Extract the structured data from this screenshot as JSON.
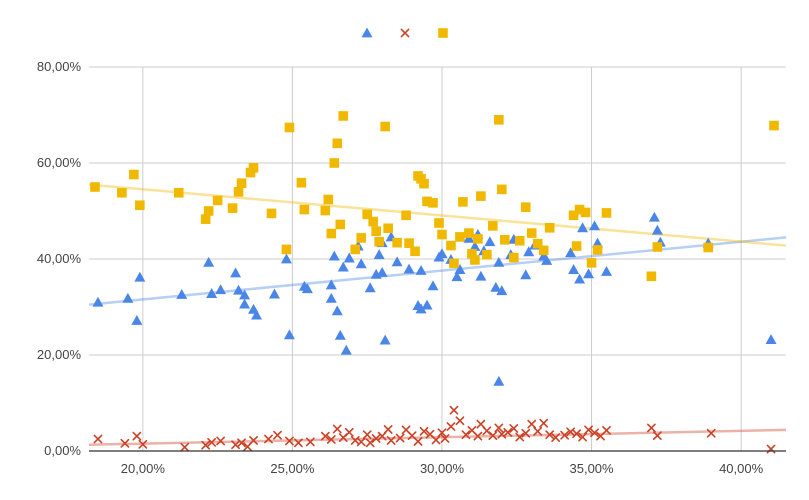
{
  "chart_data": {
    "type": "scatter",
    "title": "",
    "xlabel": "",
    "ylabel": "",
    "xlim": [
      18.2,
      41.5
    ],
    "ylim": [
      0,
      80
    ],
    "x_ticks": [
      "20,00%",
      "25,00%",
      "30,00%",
      "35,00%",
      "40,00%"
    ],
    "x_tick_values": [
      20,
      25,
      30,
      35,
      40
    ],
    "y_ticks": [
      "0,00%",
      "20,00%",
      "40,00%",
      "60,00%",
      "80,00%"
    ],
    "y_tick_values": [
      0,
      20,
      40,
      60,
      80
    ],
    "grid": true,
    "legend_position": "top",
    "series": [
      {
        "marker": "triangle",
        "color": "#4a86e8",
        "trendline": [
          [
            18.2,
            30.5
          ],
          [
            41.5,
            44.5
          ]
        ],
        "points": [
          [
            18.5,
            31.0
          ],
          [
            19.5,
            31.8
          ],
          [
            19.8,
            27.2
          ],
          [
            19.9,
            36.2
          ],
          [
            21.3,
            32.6
          ],
          [
            22.2,
            39.3
          ],
          [
            22.3,
            32.8
          ],
          [
            22.6,
            33.6
          ],
          [
            23.1,
            37.1
          ],
          [
            23.2,
            33.5
          ],
          [
            23.4,
            30.6
          ],
          [
            23.4,
            32.5
          ],
          [
            23.7,
            29.5
          ],
          [
            23.8,
            28.3
          ],
          [
            24.4,
            32.7
          ],
          [
            24.8,
            40.0
          ],
          [
            24.9,
            24.2
          ],
          [
            25.4,
            34.3
          ],
          [
            25.5,
            33.8
          ],
          [
            26.3,
            34.6
          ],
          [
            26.3,
            31.8
          ],
          [
            26.4,
            40.6
          ],
          [
            26.5,
            29.2
          ],
          [
            26.6,
            24.1
          ],
          [
            26.8,
            21.0
          ],
          [
            26.7,
            38.3
          ],
          [
            26.9,
            40.2
          ],
          [
            27.2,
            42.7
          ],
          [
            27.3,
            39.0
          ],
          [
            27.6,
            34.0
          ],
          [
            27.8,
            36.8
          ],
          [
            27.9,
            40.9
          ],
          [
            28.0,
            43.4
          ],
          [
            28.0,
            37.2
          ],
          [
            28.1,
            23.1
          ],
          [
            28.3,
            44.6
          ],
          [
            28.5,
            39.4
          ],
          [
            28.9,
            37.9
          ],
          [
            29.2,
            30.3
          ],
          [
            29.3,
            29.6
          ],
          [
            29.3,
            37.6
          ],
          [
            29.5,
            30.4
          ],
          [
            29.7,
            34.4
          ],
          [
            29.9,
            40.4
          ],
          [
            30.0,
            41.1
          ],
          [
            30.3,
            39.9
          ],
          [
            30.5,
            36.3
          ],
          [
            30.6,
            37.8
          ],
          [
            30.9,
            44.3
          ],
          [
            31.1,
            42.6
          ],
          [
            31.2,
            45.1
          ],
          [
            31.3,
            36.4
          ],
          [
            31.4,
            41.7
          ],
          [
            31.6,
            43.6
          ],
          [
            31.8,
            34.1
          ],
          [
            31.9,
            14.5
          ],
          [
            31.9,
            39.3
          ],
          [
            32.0,
            33.4
          ],
          [
            32.3,
            40.9
          ],
          [
            32.4,
            44.1
          ],
          [
            32.8,
            36.7
          ],
          [
            32.9,
            41.5
          ],
          [
            33.1,
            42.9
          ],
          [
            33.4,
            40.6
          ],
          [
            33.5,
            39.7
          ],
          [
            34.3,
            41.3
          ],
          [
            34.4,
            37.8
          ],
          [
            34.6,
            35.8
          ],
          [
            34.7,
            46.5
          ],
          [
            34.9,
            36.9
          ],
          [
            35.1,
            46.9
          ],
          [
            35.2,
            43.3
          ],
          [
            35.5,
            37.4
          ],
          [
            37.1,
            48.7
          ],
          [
            37.2,
            46.0
          ],
          [
            37.3,
            43.5
          ],
          [
            38.9,
            43.3
          ],
          [
            41.0,
            23.2
          ]
        ]
      },
      {
        "marker": "cross",
        "color": "#cc4125",
        "trendline": [
          [
            18.2,
            1.3
          ],
          [
            41.5,
            4.4
          ]
        ],
        "points": [
          [
            18.5,
            2.5
          ],
          [
            19.4,
            1.6
          ],
          [
            19.8,
            3.1
          ],
          [
            20.0,
            1.4
          ],
          [
            21.4,
            0.8
          ],
          [
            22.1,
            1.2
          ],
          [
            22.3,
            1.8
          ],
          [
            22.6,
            2.1
          ],
          [
            23.1,
            1.3
          ],
          [
            23.3,
            1.7
          ],
          [
            23.5,
            0.9
          ],
          [
            23.7,
            2.2
          ],
          [
            24.2,
            2.5
          ],
          [
            24.5,
            3.3
          ],
          [
            24.9,
            2.1
          ],
          [
            25.2,
            1.7
          ],
          [
            25.6,
            1.9
          ],
          [
            26.1,
            3.1
          ],
          [
            26.3,
            2.4
          ],
          [
            26.5,
            4.6
          ],
          [
            26.7,
            2.8
          ],
          [
            26.9,
            3.9
          ],
          [
            27.1,
            2.2
          ],
          [
            27.3,
            1.9
          ],
          [
            27.5,
            3.4
          ],
          [
            27.6,
            1.7
          ],
          [
            27.8,
            2.6
          ],
          [
            28.0,
            3.1
          ],
          [
            28.2,
            4.5
          ],
          [
            28.3,
            2.2
          ],
          [
            28.6,
            2.7
          ],
          [
            28.8,
            4.4
          ],
          [
            29.0,
            3.2
          ],
          [
            29.2,
            2.0
          ],
          [
            29.4,
            4.1
          ],
          [
            29.6,
            3.5
          ],
          [
            29.8,
            2.3
          ],
          [
            30.0,
            3.8
          ],
          [
            30.1,
            2.6
          ],
          [
            30.3,
            5.1
          ],
          [
            30.4,
            8.5
          ],
          [
            30.6,
            6.3
          ],
          [
            30.8,
            3.4
          ],
          [
            31.0,
            4.3
          ],
          [
            31.2,
            3.1
          ],
          [
            31.3,
            5.6
          ],
          [
            31.5,
            4.2
          ],
          [
            31.7,
            3.2
          ],
          [
            31.9,
            4.8
          ],
          [
            32.0,
            3.5
          ],
          [
            32.2,
            3.9
          ],
          [
            32.4,
            4.7
          ],
          [
            32.6,
            2.9
          ],
          [
            32.8,
            3.7
          ],
          [
            33.0,
            5.6
          ],
          [
            33.2,
            4.1
          ],
          [
            33.4,
            5.8
          ],
          [
            33.6,
            3.4
          ],
          [
            33.8,
            2.8
          ],
          [
            34.1,
            3.3
          ],
          [
            34.3,
            4.0
          ],
          [
            34.5,
            3.6
          ],
          [
            34.7,
            2.9
          ],
          [
            34.9,
            4.4
          ],
          [
            35.1,
            3.8
          ],
          [
            35.3,
            3.1
          ],
          [
            35.5,
            4.3
          ],
          [
            37.0,
            4.8
          ],
          [
            37.2,
            3.2
          ],
          [
            39.0,
            3.7
          ],
          [
            41.0,
            0.4
          ]
        ]
      },
      {
        "marker": "square",
        "color": "#f1b800",
        "trendline": [
          [
            18.2,
            55.5
          ],
          [
            41.5,
            42.8
          ]
        ],
        "points": [
          [
            18.4,
            55.0
          ],
          [
            19.3,
            53.8
          ],
          [
            19.7,
            57.6
          ],
          [
            19.9,
            51.2
          ],
          [
            21.2,
            53.8
          ],
          [
            22.1,
            48.3
          ],
          [
            22.2,
            50.0
          ],
          [
            22.5,
            52.2
          ],
          [
            23.0,
            50.6
          ],
          [
            23.2,
            54.0
          ],
          [
            23.3,
            55.8
          ],
          [
            23.6,
            58.0
          ],
          [
            23.7,
            59.0
          ],
          [
            24.3,
            49.5
          ],
          [
            24.8,
            42.0
          ],
          [
            24.9,
            67.4
          ],
          [
            25.3,
            55.9
          ],
          [
            25.4,
            50.3
          ],
          [
            26.1,
            50.1
          ],
          [
            26.2,
            52.4
          ],
          [
            26.3,
            45.3
          ],
          [
            26.4,
            60.0
          ],
          [
            26.5,
            64.1
          ],
          [
            26.6,
            47.2
          ],
          [
            26.7,
            69.8
          ],
          [
            27.1,
            42.0
          ],
          [
            27.3,
            44.4
          ],
          [
            27.5,
            49.3
          ],
          [
            27.7,
            47.8
          ],
          [
            27.8,
            45.8
          ],
          [
            27.9,
            43.6
          ],
          [
            28.1,
            67.6
          ],
          [
            28.2,
            46.4
          ],
          [
            28.5,
            43.4
          ],
          [
            28.8,
            49.1
          ],
          [
            28.9,
            43.3
          ],
          [
            29.1,
            41.6
          ],
          [
            29.2,
            57.3
          ],
          [
            29.3,
            56.7
          ],
          [
            29.4,
            55.7
          ],
          [
            29.5,
            52.0
          ],
          [
            29.7,
            51.7
          ],
          [
            29.9,
            47.5
          ],
          [
            30.0,
            45.1
          ],
          [
            30.3,
            42.8
          ],
          [
            30.4,
            39.1
          ],
          [
            30.6,
            44.6
          ],
          [
            30.7,
            51.9
          ],
          [
            30.9,
            45.4
          ],
          [
            31.0,
            41.1
          ],
          [
            31.1,
            39.8
          ],
          [
            31.2,
            44.2
          ],
          [
            31.3,
            53.1
          ],
          [
            31.5,
            40.9
          ],
          [
            31.7,
            46.9
          ],
          [
            31.9,
            69.0
          ],
          [
            32.0,
            54.5
          ],
          [
            32.1,
            44.0
          ],
          [
            32.4,
            40.3
          ],
          [
            32.6,
            43.8
          ],
          [
            32.8,
            50.8
          ],
          [
            33.0,
            45.4
          ],
          [
            33.2,
            43.2
          ],
          [
            33.4,
            41.8
          ],
          [
            33.6,
            46.5
          ],
          [
            34.4,
            49.1
          ],
          [
            34.5,
            42.7
          ],
          [
            34.6,
            50.3
          ],
          [
            34.8,
            49.7
          ],
          [
            35.0,
            39.2
          ],
          [
            35.2,
            41.9
          ],
          [
            35.5,
            49.6
          ],
          [
            37.0,
            36.4
          ],
          [
            37.2,
            42.5
          ],
          [
            38.9,
            42.4
          ],
          [
            41.1,
            67.8
          ]
        ]
      }
    ]
  }
}
